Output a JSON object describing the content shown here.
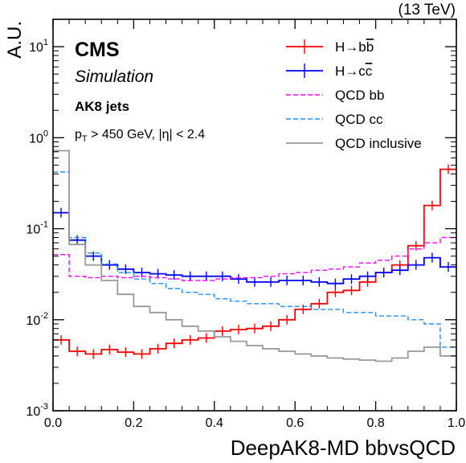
{
  "energy_label": "(13 TeV)",
  "cms_label": "CMS",
  "simulation_label": "Simulation",
  "jet_label": "AK8 jets",
  "cut_label": {
    "pt_prefix": "p",
    "pt_sub": "T",
    "rest": " > 450 GeV, |η| < 2.4"
  },
  "chart_data": {
    "type": "line",
    "histogram": true,
    "xlabel": "DeepAK8-MD bbvsQCD",
    "ylabel": "A.U.",
    "xlim": [
      0,
      1
    ],
    "ylim": [
      0.001,
      20
    ],
    "yscale": "log",
    "xticks": [
      "0.0",
      "0.2",
      "0.4",
      "0.6",
      "0.8",
      "1.0"
    ],
    "yticks": [
      "10^-3",
      "10^-2",
      "10^-1",
      "10^0",
      "10^1"
    ],
    "legend_position": "top-right",
    "bin_edges": [
      0.0,
      0.04,
      0.08,
      0.12,
      0.16,
      0.2,
      0.24,
      0.28,
      0.32,
      0.36,
      0.4,
      0.44,
      0.48,
      0.52,
      0.56,
      0.6,
      0.64,
      0.68,
      0.72,
      0.76,
      0.8,
      0.84,
      0.88,
      0.92,
      0.96,
      1.0
    ],
    "series": [
      {
        "name": "H→bb̅",
        "label_main": "H→b",
        "label_bar": "b",
        "color": "#ff0000",
        "style": "solid",
        "error_bars": true,
        "values": [
          0.006,
          0.0045,
          0.0042,
          0.0047,
          0.0044,
          0.0042,
          0.0048,
          0.0055,
          0.006,
          0.0063,
          0.0075,
          0.0078,
          0.008,
          0.0085,
          0.01,
          0.013,
          0.015,
          0.02,
          0.021,
          0.026,
          0.033,
          0.04,
          0.065,
          0.18,
          0.45
        ]
      },
      {
        "name": "H→cc̅",
        "label_main": "H→c",
        "label_bar": "c",
        "color": "#0000ff",
        "style": "solid",
        "error_bars": true,
        "values": [
          0.15,
          0.075,
          0.05,
          0.04,
          0.036,
          0.033,
          0.032,
          0.031,
          0.03,
          0.03,
          0.03,
          0.028,
          0.026,
          0.026,
          0.027,
          0.027,
          0.026,
          0.025,
          0.028,
          0.03,
          0.033,
          0.035,
          0.04,
          0.048,
          0.038
        ]
      },
      {
        "name": "QCD bb",
        "color": "#ff00ff",
        "style": "dashed",
        "error_bars": false,
        "values": [
          0.052,
          0.03,
          0.029,
          0.03,
          0.029,
          0.03,
          0.029,
          0.028,
          0.027,
          0.027,
          0.028,
          0.029,
          0.029,
          0.03,
          0.032,
          0.033,
          0.035,
          0.036,
          0.038,
          0.042,
          0.045,
          0.05,
          0.06,
          0.07,
          0.08
        ]
      },
      {
        "name": "QCD cc",
        "color": "#1e90ff",
        "style": "dashed",
        "error_bars": false,
        "values": [
          0.42,
          0.08,
          0.054,
          0.041,
          0.033,
          0.028,
          0.025,
          0.022,
          0.02,
          0.019,
          0.017,
          0.016,
          0.015,
          0.015,
          0.014,
          0.014,
          0.013,
          0.013,
          0.012,
          0.012,
          0.011,
          0.011,
          0.01,
          0.009,
          0.005
        ]
      },
      {
        "name": "QCD inclusive",
        "color": "#999999",
        "style": "solid",
        "error_bars": false,
        "values": [
          0.72,
          0.067,
          0.04,
          0.027,
          0.019,
          0.014,
          0.012,
          0.01,
          0.0085,
          0.0075,
          0.0065,
          0.0058,
          0.0052,
          0.0048,
          0.0045,
          0.0042,
          0.004,
          0.0038,
          0.0037,
          0.0036,
          0.0035,
          0.0038,
          0.0045,
          0.005,
          0.004
        ]
      }
    ]
  }
}
